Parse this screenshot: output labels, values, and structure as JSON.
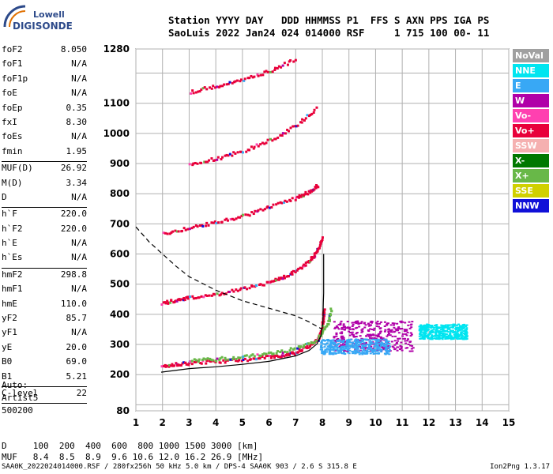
{
  "brand": {
    "line1": "Lowell",
    "line2": "DIGISONDE"
  },
  "header": {
    "row1": "Station YYYY DAY   DDD HHMMSS P1  FFS S AXN PPS IGA PS",
    "row2": "SaoLuis 2022 Jan24 024 014000 RSF     1 715 100 00- 11"
  },
  "params": [
    {
      "k": "foF2",
      "v": "8.050"
    },
    {
      "k": "foF1",
      "v": "N/A"
    },
    {
      "k": "foF1p",
      "v": "N/A"
    },
    {
      "k": "foE",
      "v": "N/A"
    },
    {
      "k": "foEp",
      "v": "0.35"
    },
    {
      "k": "fxI",
      "v": "8.30"
    },
    {
      "k": "foEs",
      "v": "N/A"
    },
    {
      "k": "fmin",
      "v": "1.95"
    },
    {
      "sep": true
    },
    {
      "k": "MUF(D)",
      "v": "26.92"
    },
    {
      "k": "M(D)",
      "v": "3.34"
    },
    {
      "k": "D",
      "v": "N/A"
    },
    {
      "sep": true
    },
    {
      "k": "h`F",
      "v": "220.0"
    },
    {
      "k": "h`F2",
      "v": "220.0"
    },
    {
      "k": "h`E",
      "v": "N/A"
    },
    {
      "k": "h`Es",
      "v": "N/A"
    },
    {
      "sep": true
    },
    {
      "k": "hmF2",
      "v": "298.8"
    },
    {
      "k": "hmF1",
      "v": "N/A"
    },
    {
      "k": "hmE",
      "v": "110.0"
    },
    {
      "k": "yF2",
      "v": "85.7"
    },
    {
      "k": "yF1",
      "v": "N/A"
    },
    {
      "k": "yE",
      "v": "20.0"
    },
    {
      "k": "B0",
      "v": "69.0"
    },
    {
      "k": "B1",
      "v": "5.21"
    },
    {
      "sep": true
    },
    {
      "k": "C-level",
      "v": "22"
    },
    {
      "sep": true
    }
  ],
  "auto": {
    "line1": "Auto:",
    "line2": "Artist5",
    "line3": "500200"
  },
  "legend": [
    {
      "label": "NoVal",
      "color": "#a0a0a0"
    },
    {
      "label": "NNE",
      "color": "#00e5f0"
    },
    {
      "label": "E",
      "color": "#38a8f5"
    },
    {
      "label": "W",
      "color": "#b000a8"
    },
    {
      "label": "Vo-",
      "color": "#ff40b0"
    },
    {
      "label": "Vo+",
      "color": "#e8003a"
    },
    {
      "label": "SSW",
      "color": "#f5b0b0"
    },
    {
      "label": "X-",
      "color": "#007800"
    },
    {
      "label": "X+",
      "color": "#68b848"
    },
    {
      "label": "SSE",
      "color": "#d0d000"
    },
    {
      "label": "NNW",
      "color": "#1010d8"
    }
  ],
  "mufrow": {
    "d_label": "D",
    "d_values": "100  200  400  600  800 1000 1500 3000 [km]",
    "m_label": "MUF",
    "m_values": "8.4  8.5  8.9  9.6 10.6 12.0 16.2 26.9 [MHz]"
  },
  "footer": "SAA0K_2022024014000.RSF / 280fx256h 50 kHz 5.0 km / DPS-4 SAA0K 903 / 2.6 S 315.8 E",
  "version": "Ion2Png 1.3.17",
  "chart_data": {
    "type": "scatter",
    "title": "",
    "xlabel": "",
    "ylabel": "",
    "xlim": [
      1,
      15
    ],
    "ylim": [
      80,
      1280
    ],
    "x_ticks": [
      1,
      2,
      3,
      4,
      5,
      6,
      7,
      8,
      9,
      10,
      11,
      12,
      13,
      14,
      15
    ],
    "y_ticks": [
      80,
      200,
      300,
      400,
      500,
      600,
      700,
      800,
      900,
      1000,
      1100,
      1280
    ],
    "y_grid": [
      80,
      100,
      200,
      300,
      400,
      500,
      600,
      700,
      800,
      900,
      1000,
      1100,
      1200,
      1280
    ],
    "grid": true,
    "traces": [
      {
        "name": "Vo+",
        "note": "O-mode 1st hop",
        "points": [
          [
            1.95,
            232
          ],
          [
            2.5,
            238
          ],
          [
            3,
            242
          ],
          [
            4,
            247
          ],
          [
            5,
            253
          ],
          [
            6,
            262
          ],
          [
            6.5,
            268
          ],
          [
            7,
            278
          ],
          [
            7.5,
            298
          ],
          [
            7.8,
            320
          ],
          [
            7.95,
            350
          ],
          [
            8.0,
            390
          ],
          [
            8.03,
            420
          ]
        ]
      },
      {
        "name": "Vo+",
        "note": "O-mode 2nd hop",
        "points": [
          [
            1.95,
            440
          ],
          [
            2.5,
            452
          ],
          [
            3,
            458
          ],
          [
            4,
            470
          ],
          [
            5,
            488
          ],
          [
            6,
            510
          ],
          [
            6.5,
            525
          ],
          [
            7,
            548
          ],
          [
            7.5,
            580
          ],
          [
            7.8,
            615
          ],
          [
            7.95,
            660
          ]
        ]
      },
      {
        "name": "Vo+",
        "note": "3rd hop",
        "points": [
          [
            2,
            670
          ],
          [
            3,
            690
          ],
          [
            4,
            708
          ],
          [
            5,
            730
          ],
          [
            6,
            760
          ],
          [
            7,
            790
          ],
          [
            7.5,
            810
          ],
          [
            7.8,
            830
          ]
        ]
      },
      {
        "name": "Vo+",
        "note": "4th hop",
        "points": [
          [
            3,
            900
          ],
          [
            4,
            920
          ],
          [
            5,
            945
          ],
          [
            6,
            980
          ],
          [
            7,
            1030
          ],
          [
            7.8,
            1090
          ]
        ]
      },
      {
        "name": "Vo+",
        "note": "5th hop",
        "points": [
          [
            3,
            1140
          ],
          [
            4,
            1160
          ],
          [
            5,
            1180
          ],
          [
            6,
            1210
          ],
          [
            7,
            1250
          ]
        ]
      },
      {
        "name": "X+",
        "note": "X-mode 1st hop",
        "points": [
          [
            3,
            250
          ],
          [
            4,
            255
          ],
          [
            5,
            262
          ],
          [
            6,
            272
          ],
          [
            7,
            290
          ],
          [
            7.8,
            320
          ],
          [
            8.2,
            380
          ],
          [
            8.3,
            420
          ]
        ]
      }
    ],
    "profile_solid": [
      [
        1.95,
        208
      ],
      [
        3,
        220
      ],
      [
        4,
        226
      ],
      [
        5,
        234
      ],
      [
        6,
        244
      ],
      [
        7,
        262
      ],
      [
        7.5,
        280
      ],
      [
        7.8,
        302
      ],
      [
        7.95,
        330
      ],
      [
        8.02,
        370
      ],
      [
        8.04,
        440
      ],
      [
        8.05,
        470
      ],
      [
        8.05,
        600
      ]
    ],
    "profile_dashed": [
      [
        1.0,
        690
      ],
      [
        1.5,
        640
      ],
      [
        2,
        600
      ],
      [
        2.5,
        560
      ],
      [
        3,
        525
      ],
      [
        4,
        480
      ],
      [
        5,
        445
      ],
      [
        6,
        420
      ],
      [
        7,
        395
      ],
      [
        7.5,
        375
      ],
      [
        8,
        350
      ]
    ],
    "clutter": [
      {
        "name": "W",
        "note": "spread F",
        "x": [
          8.4,
          11.4
        ],
        "y": [
          280,
          380
        ]
      },
      {
        "name": "NNE",
        "note": "spread F",
        "x": [
          11.6,
          13.4
        ],
        "y": [
          320,
          370
        ]
      },
      {
        "name": "E",
        "note": "spread F",
        "x": [
          7.9,
          10.5
        ],
        "y": [
          270,
          320
        ]
      }
    ]
  }
}
